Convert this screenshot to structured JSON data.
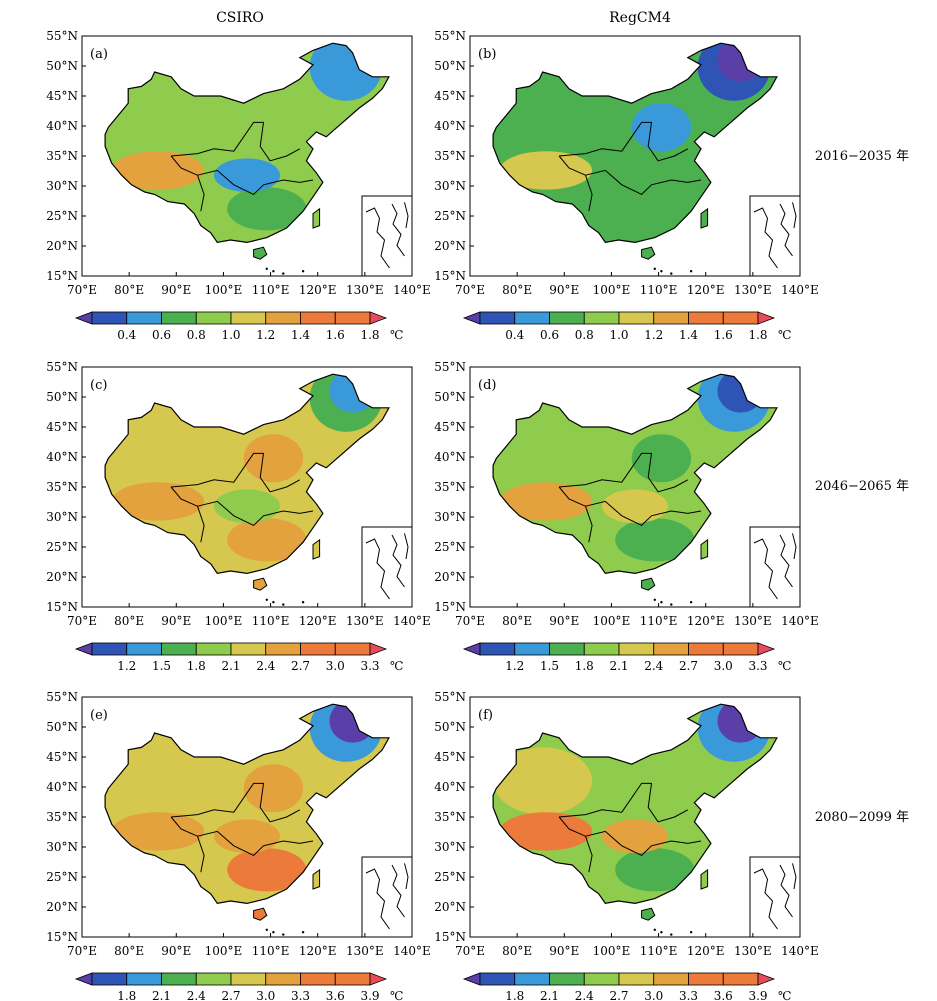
{
  "figure": {
    "column_titles": [
      "CSIRO",
      "RegCM4"
    ],
    "row_labels": [
      "2016−2035 年",
      "2046−2065 年",
      "2080−2099 年"
    ]
  },
  "axes": {
    "lat_labels": [
      "55°N",
      "50°N",
      "45°N",
      "40°N",
      "35°N",
      "30°N",
      "25°N",
      "20°N",
      "15°N"
    ],
    "lon_labels": [
      "70°E",
      "80°E",
      "90°E",
      "100°E",
      "110°E",
      "120°E",
      "130°E",
      "140°E"
    ],
    "lat_range": [
      15,
      55
    ],
    "lon_range": [
      70,
      140
    ]
  },
  "colors": {
    "scale": [
      "#5b3fa8",
      "#2e55b5",
      "#3a9ad9",
      "#4cb050",
      "#8fcb4d",
      "#d6c84e",
      "#e3a23e",
      "#ec7a3a",
      "#e84a5a"
    ],
    "outline": "#000000"
  },
  "colorbars": [
    {
      "ticks": [
        "0.4",
        "0.6",
        "0.8",
        "1.0",
        "1.2",
        "1.4",
        "1.6",
        "1.8"
      ],
      "unit": "℃"
    },
    {
      "ticks": [
        "1.2",
        "1.5",
        "1.8",
        "2.1",
        "2.4",
        "2.7",
        "3.0",
        "3.3"
      ],
      "unit": "℃"
    },
    {
      "ticks": [
        "1.8",
        "2.1",
        "2.4",
        "2.7",
        "3.0",
        "3.3",
        "3.6",
        "3.9"
      ],
      "unit": "℃"
    }
  ],
  "panels": [
    {
      "label": "(a)",
      "model": "CSIRO",
      "period": "2016−2035 年",
      "regions": {
        "base": 4,
        "northeast": 2,
        "northeast_core": 2,
        "west": 4,
        "southwest": 6,
        "north_china": 4,
        "south": 3,
        "central": 2
      }
    },
    {
      "label": "(b)",
      "model": "RegCM4",
      "period": "2016−2035 年",
      "regions": {
        "base": 3,
        "northeast": 1,
        "northeast_core": 0,
        "west": 3,
        "southwest": 5,
        "north_china": 2,
        "south": 3,
        "central": 3
      }
    },
    {
      "label": "(c)",
      "model": "CSIRO",
      "period": "2046−2065 年",
      "regions": {
        "base": 5,
        "northeast": 3,
        "northeast_core": 2,
        "west": 5,
        "southwest": 6,
        "north_china": 6,
        "south": 6,
        "central": 4
      }
    },
    {
      "label": "(d)",
      "model": "RegCM4",
      "period": "2046−2065 年",
      "regions": {
        "base": 4,
        "northeast": 2,
        "northeast_core": 1,
        "west": 4,
        "southwest": 6,
        "north_china": 3,
        "south": 3,
        "central": 5
      }
    },
    {
      "label": "(e)",
      "model": "CSIRO",
      "period": "2080−2099 年",
      "regions": {
        "base": 5,
        "northeast": 2,
        "northeast_core": 0,
        "west": 5,
        "southwest": 6,
        "north_china": 6,
        "south": 7,
        "central": 6
      }
    },
    {
      "label": "(f)",
      "model": "RegCM4",
      "period": "2080−2099 年",
      "regions": {
        "base": 4,
        "northeast": 2,
        "northeast_core": 0,
        "west": 5,
        "southwest": 7,
        "north_china": 4,
        "south": 3,
        "central": 6
      }
    }
  ]
}
